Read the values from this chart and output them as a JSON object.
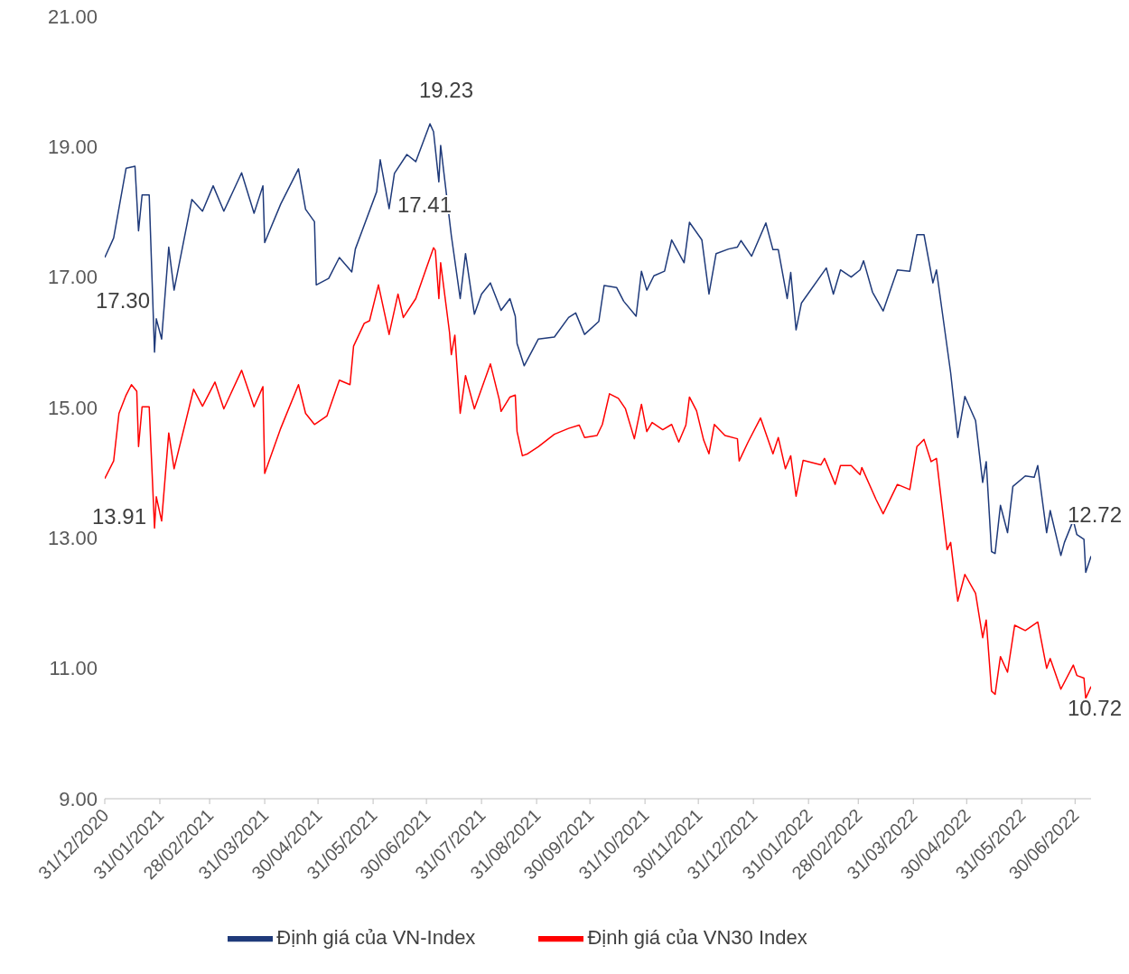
{
  "chart_data": {
    "type": "line",
    "ylim": [
      9,
      21
    ],
    "yticks": [
      {
        "value": 9,
        "label": "9.00"
      },
      {
        "value": 11,
        "label": "11.00"
      },
      {
        "value": 13,
        "label": "13.00"
      },
      {
        "value": 15,
        "label": "15.00"
      },
      {
        "value": 17,
        "label": "17.00"
      },
      {
        "value": 19,
        "label": "19.00"
      },
      {
        "value": 21,
        "label": "21.00"
      }
    ],
    "xlim": [
      "2020-12-31",
      "2022-07-09"
    ],
    "xticks": [
      {
        "value": "2020-12-31",
        "label": "31/12/2020"
      },
      {
        "value": "2021-01-31",
        "label": "31/01/2021"
      },
      {
        "value": "2021-02-28",
        "label": "28/02/2021"
      },
      {
        "value": "2021-03-31",
        "label": "31/03/2021"
      },
      {
        "value": "2021-04-30",
        "label": "30/04/2021"
      },
      {
        "value": "2021-05-31",
        "label": "31/05/2021"
      },
      {
        "value": "2021-06-30",
        "label": "30/06/2021"
      },
      {
        "value": "2021-07-31",
        "label": "31/07/2021"
      },
      {
        "value": "2021-08-31",
        "label": "31/08/2021"
      },
      {
        "value": "2021-09-30",
        "label": "30/09/2021"
      },
      {
        "value": "2021-10-31",
        "label": "31/10/2021"
      },
      {
        "value": "2021-11-30",
        "label": "30/11/2021"
      },
      {
        "value": "2021-12-31",
        "label": "31/12/2021"
      },
      {
        "value": "2022-01-31",
        "label": "31/01/2022"
      },
      {
        "value": "2022-02-28",
        "label": "28/02/2022"
      },
      {
        "value": "2022-03-31",
        "label": "31/03/2022"
      },
      {
        "value": "2022-04-30",
        "label": "30/04/2022"
      },
      {
        "value": "2022-05-31",
        "label": "31/05/2022"
      },
      {
        "value": "2022-06-30",
        "label": "30/06/2022"
      }
    ],
    "grid": false,
    "legend": "bottom",
    "marker": "none",
    "line_style": "solid",
    "series": [
      {
        "name": "Định giá của VN-Index",
        "color": "#1f3a7a",
        "x": [
          "2020-12-31",
          "2021-01-05",
          "2021-01-12",
          "2021-01-17",
          "2021-01-19",
          "2021-01-21",
          "2021-01-25",
          "2021-01-28",
          "2021-01-29",
          "2021-02-01",
          "2021-02-05",
          "2021-02-08",
          "2021-02-18",
          "2021-02-24",
          "2021-03-02",
          "2021-03-08",
          "2021-03-18",
          "2021-03-25",
          "2021-03-30",
          "2021-03-31",
          "2021-04-09",
          "2021-04-19",
          "2021-04-23",
          "2021-04-28",
          "2021-04-29",
          "2021-05-06",
          "2021-05-12",
          "2021-05-19",
          "2021-05-21",
          "2021-06-02",
          "2021-06-04",
          "2021-06-09",
          "2021-06-12",
          "2021-06-19",
          "2021-06-24",
          "2021-07-02",
          "2021-07-04",
          "2021-07-07",
          "2021-07-08",
          "2021-07-14",
          "2021-07-19",
          "2021-07-22",
          "2021-07-27",
          "2021-07-31",
          "2021-08-05",
          "2021-08-11",
          "2021-08-16",
          "2021-08-19",
          "2021-08-20",
          "2021-08-24",
          "2021-09-01",
          "2021-09-10",
          "2021-09-18",
          "2021-09-22",
          "2021-09-27",
          "2021-10-05",
          "2021-10-08",
          "2021-10-15",
          "2021-10-19",
          "2021-10-26",
          "2021-10-29",
          "2021-11-01",
          "2021-11-05",
          "2021-11-11",
          "2021-11-15",
          "2021-11-22",
          "2021-11-25",
          "2021-12-02",
          "2021-12-06",
          "2021-12-10",
          "2021-12-17",
          "2021-12-22",
          "2021-12-24",
          "2021-12-30",
          "2022-01-07",
          "2022-01-11",
          "2022-01-14",
          "2022-01-19",
          "2022-01-21",
          "2022-01-24",
          "2022-01-27",
          "2022-02-10",
          "2022-02-14",
          "2022-02-18",
          "2022-02-24",
          "2022-03-01",
          "2022-03-03",
          "2022-03-08",
          "2022-03-14",
          "2022-03-22",
          "2022-03-29",
          "2022-04-02",
          "2022-04-06",
          "2022-04-11",
          "2022-04-13",
          "2022-04-21",
          "2022-04-25",
          "2022-04-29",
          "2022-05-05",
          "2022-05-09",
          "2022-05-11",
          "2022-05-14",
          "2022-05-16",
          "2022-05-19",
          "2022-05-23",
          "2022-05-26",
          "2022-06-02",
          "2022-06-07",
          "2022-06-09",
          "2022-06-14",
          "2022-06-16",
          "2022-06-22",
          "2022-06-24",
          "2022-06-29",
          "2022-07-01",
          "2022-07-05",
          "2022-07-06",
          "2022-07-09"
        ],
        "values": [
          17.3,
          17.6,
          18.67,
          18.7,
          17.71,
          18.26,
          18.26,
          15.85,
          16.36,
          16.05,
          17.46,
          16.8,
          18.19,
          18.01,
          18.4,
          18.01,
          18.6,
          17.98,
          18.4,
          17.53,
          18.12,
          18.66,
          18.04,
          17.85,
          16.88,
          16.98,
          17.3,
          17.08,
          17.43,
          18.31,
          18.8,
          18.05,
          18.59,
          18.88,
          18.77,
          19.35,
          19.23,
          18.46,
          19.02,
          17.64,
          16.67,
          17.36,
          16.43,
          16.74,
          16.91,
          16.49,
          16.67,
          16.4,
          15.98,
          15.64,
          16.05,
          16.08,
          16.38,
          16.45,
          16.12,
          16.32,
          16.87,
          16.84,
          16.63,
          16.4,
          17.09,
          16.8,
          17.02,
          17.09,
          17.57,
          17.22,
          17.84,
          17.57,
          16.74,
          17.36,
          17.43,
          17.46,
          17.56,
          17.32,
          17.83,
          17.42,
          17.42,
          16.67,
          17.07,
          16.19,
          16.6,
          17.14,
          16.74,
          17.11,
          17.0,
          17.11,
          17.25,
          16.77,
          16.48,
          17.11,
          17.09,
          17.65,
          17.65,
          16.91,
          17.11,
          15.53,
          14.54,
          15.17,
          14.8,
          13.85,
          14.17,
          12.79,
          12.76,
          13.5,
          13.08,
          13.79,
          13.95,
          13.93,
          14.11,
          13.08,
          13.42,
          12.73,
          12.93,
          13.27,
          13.05,
          12.98,
          12.47,
          12.72
        ]
      },
      {
        "name": "Định giá của VN30 Index",
        "color": "#ff0000",
        "x": [
          "2020-12-31",
          "2021-01-05",
          "2021-01-08",
          "2021-01-12",
          "2021-01-15",
          "2021-01-18",
          "2021-01-19",
          "2021-01-21",
          "2021-01-25",
          "2021-01-28",
          "2021-01-29",
          "2021-02-01",
          "2021-02-05",
          "2021-02-08",
          "2021-02-19",
          "2021-02-24",
          "2021-03-03",
          "2021-03-08",
          "2021-03-18",
          "2021-03-25",
          "2021-03-30",
          "2021-03-31",
          "2021-04-09",
          "2021-04-19",
          "2021-04-23",
          "2021-04-28",
          "2021-05-05",
          "2021-05-12",
          "2021-05-18",
          "2021-05-20",
          "2021-05-26",
          "2021-05-29",
          "2021-06-03",
          "2021-06-09",
          "2021-06-14",
          "2021-06-17",
          "2021-06-24",
          "2021-06-30",
          "2021-07-04",
          "2021-07-05",
          "2021-07-07",
          "2021-07-08",
          "2021-07-13",
          "2021-07-14",
          "2021-07-16",
          "2021-07-19",
          "2021-07-22",
          "2021-07-27",
          "2021-08-05",
          "2021-08-10",
          "2021-08-11",
          "2021-08-16",
          "2021-08-19",
          "2021-08-20",
          "2021-08-23",
          "2021-08-26",
          "2021-09-01",
          "2021-09-10",
          "2021-09-18",
          "2021-09-24",
          "2021-09-27",
          "2021-10-04",
          "2021-10-07",
          "2021-10-11",
          "2021-10-16",
          "2021-10-20",
          "2021-10-25",
          "2021-10-29",
          "2021-11-01",
          "2021-11-04",
          "2021-11-10",
          "2021-11-15",
          "2021-11-19",
          "2021-11-23",
          "2021-11-25",
          "2021-11-29",
          "2021-12-03",
          "2021-12-06",
          "2021-12-09",
          "2021-12-15",
          "2021-12-22",
          "2021-12-23",
          "2021-12-28",
          "2022-01-04",
          "2022-01-11",
          "2022-01-14",
          "2022-01-18",
          "2022-01-21",
          "2022-01-24",
          "2022-01-28",
          "2022-02-07",
          "2022-02-09",
          "2022-02-15",
          "2022-02-18",
          "2022-02-24",
          "2022-03-01",
          "2022-03-02",
          "2022-03-10",
          "2022-03-14",
          "2022-03-22",
          "2022-03-29",
          "2022-04-02",
          "2022-04-06",
          "2022-04-10",
          "2022-04-13",
          "2022-04-19",
          "2022-04-21",
          "2022-04-25",
          "2022-04-29",
          "2022-05-05",
          "2022-05-09",
          "2022-05-11",
          "2022-05-14",
          "2022-05-16",
          "2022-05-19",
          "2022-05-23",
          "2022-05-27",
          "2022-06-02",
          "2022-06-09",
          "2022-06-14",
          "2022-06-16",
          "2022-06-22",
          "2022-06-29",
          "2022-07-01",
          "2022-07-05",
          "2022-07-06",
          "2022-07-09"
        ],
        "values": [
          13.91,
          14.18,
          14.91,
          15.19,
          15.35,
          15.25,
          14.4,
          15.01,
          15.01,
          13.15,
          13.63,
          13.26,
          14.61,
          14.06,
          15.28,
          15.02,
          15.39,
          14.98,
          15.57,
          15.01,
          15.32,
          13.99,
          14.68,
          15.35,
          14.91,
          14.74,
          14.87,
          15.42,
          15.35,
          15.94,
          16.29,
          16.33,
          16.88,
          16.12,
          16.74,
          16.38,
          16.67,
          17.14,
          17.45,
          17.41,
          16.67,
          17.22,
          16.15,
          15.81,
          16.11,
          14.91,
          15.49,
          14.98,
          15.67,
          15.12,
          14.94,
          15.16,
          15.19,
          14.63,
          14.26,
          14.29,
          14.4,
          14.59,
          14.68,
          14.73,
          14.54,
          14.57,
          14.74,
          15.21,
          15.14,
          14.98,
          14.52,
          15.05,
          14.63,
          14.77,
          14.66,
          14.74,
          14.47,
          14.73,
          15.16,
          14.95,
          14.5,
          14.29,
          14.74,
          14.57,
          14.52,
          14.18,
          14.47,
          14.84,
          14.29,
          14.54,
          14.06,
          14.26,
          13.64,
          14.19,
          14.12,
          14.22,
          13.82,
          14.11,
          14.11,
          13.97,
          14.08,
          13.59,
          13.37,
          13.82,
          13.74,
          14.4,
          14.51,
          14.17,
          14.22,
          12.82,
          12.93,
          12.03,
          12.44,
          12.15,
          11.47,
          11.74,
          10.65,
          10.6,
          11.18,
          10.94,
          11.66,
          11.58,
          11.71,
          11.0,
          11.15,
          10.68,
          11.05,
          10.89,
          10.85,
          10.54,
          10.72
        ]
      }
    ],
    "annotations": [
      {
        "text": "17.30",
        "x": "2020-12-31",
        "y": 17.3
      },
      {
        "text": "13.91",
        "x": "2020-12-31",
        "y": 13.91
      },
      {
        "text": "19.23",
        "x": "2021-07-04",
        "y": 19.23
      },
      {
        "text": "17.41",
        "x": "2021-07-05",
        "y": 17.41
      },
      {
        "text": "12.72",
        "x": "2022-07-09",
        "y": 12.72
      },
      {
        "text": "10.72",
        "x": "2022-07-09",
        "y": 10.72
      }
    ]
  }
}
